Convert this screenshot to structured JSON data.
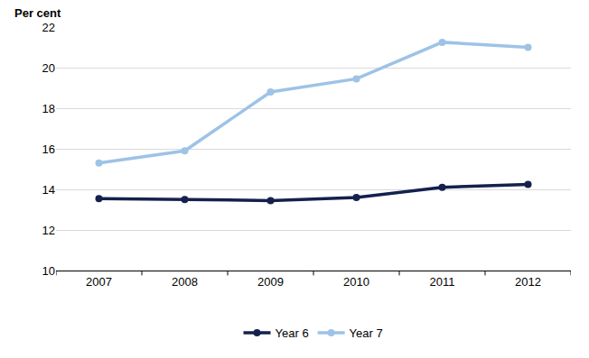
{
  "chart_data": {
    "type": "line",
    "y_label": "Per cent",
    "categories": [
      "2007",
      "2008",
      "2009",
      "2010",
      "2011",
      "2012"
    ],
    "series": [
      {
        "name": "Year 6",
        "color": "#14214d",
        "marker": "circle",
        "values": [
          13.55,
          13.5,
          13.45,
          13.6,
          14.1,
          14.25
        ]
      },
      {
        "name": "Year 7",
        "color": "#9dc3e6",
        "marker": "circle",
        "values": [
          15.3,
          15.9,
          18.8,
          19.45,
          21.25,
          21.0
        ]
      }
    ],
    "ylim": [
      10,
      22
    ],
    "yticks": [
      10,
      12,
      14,
      16,
      18,
      20,
      22
    ],
    "grid": true,
    "legend": "bottom"
  }
}
